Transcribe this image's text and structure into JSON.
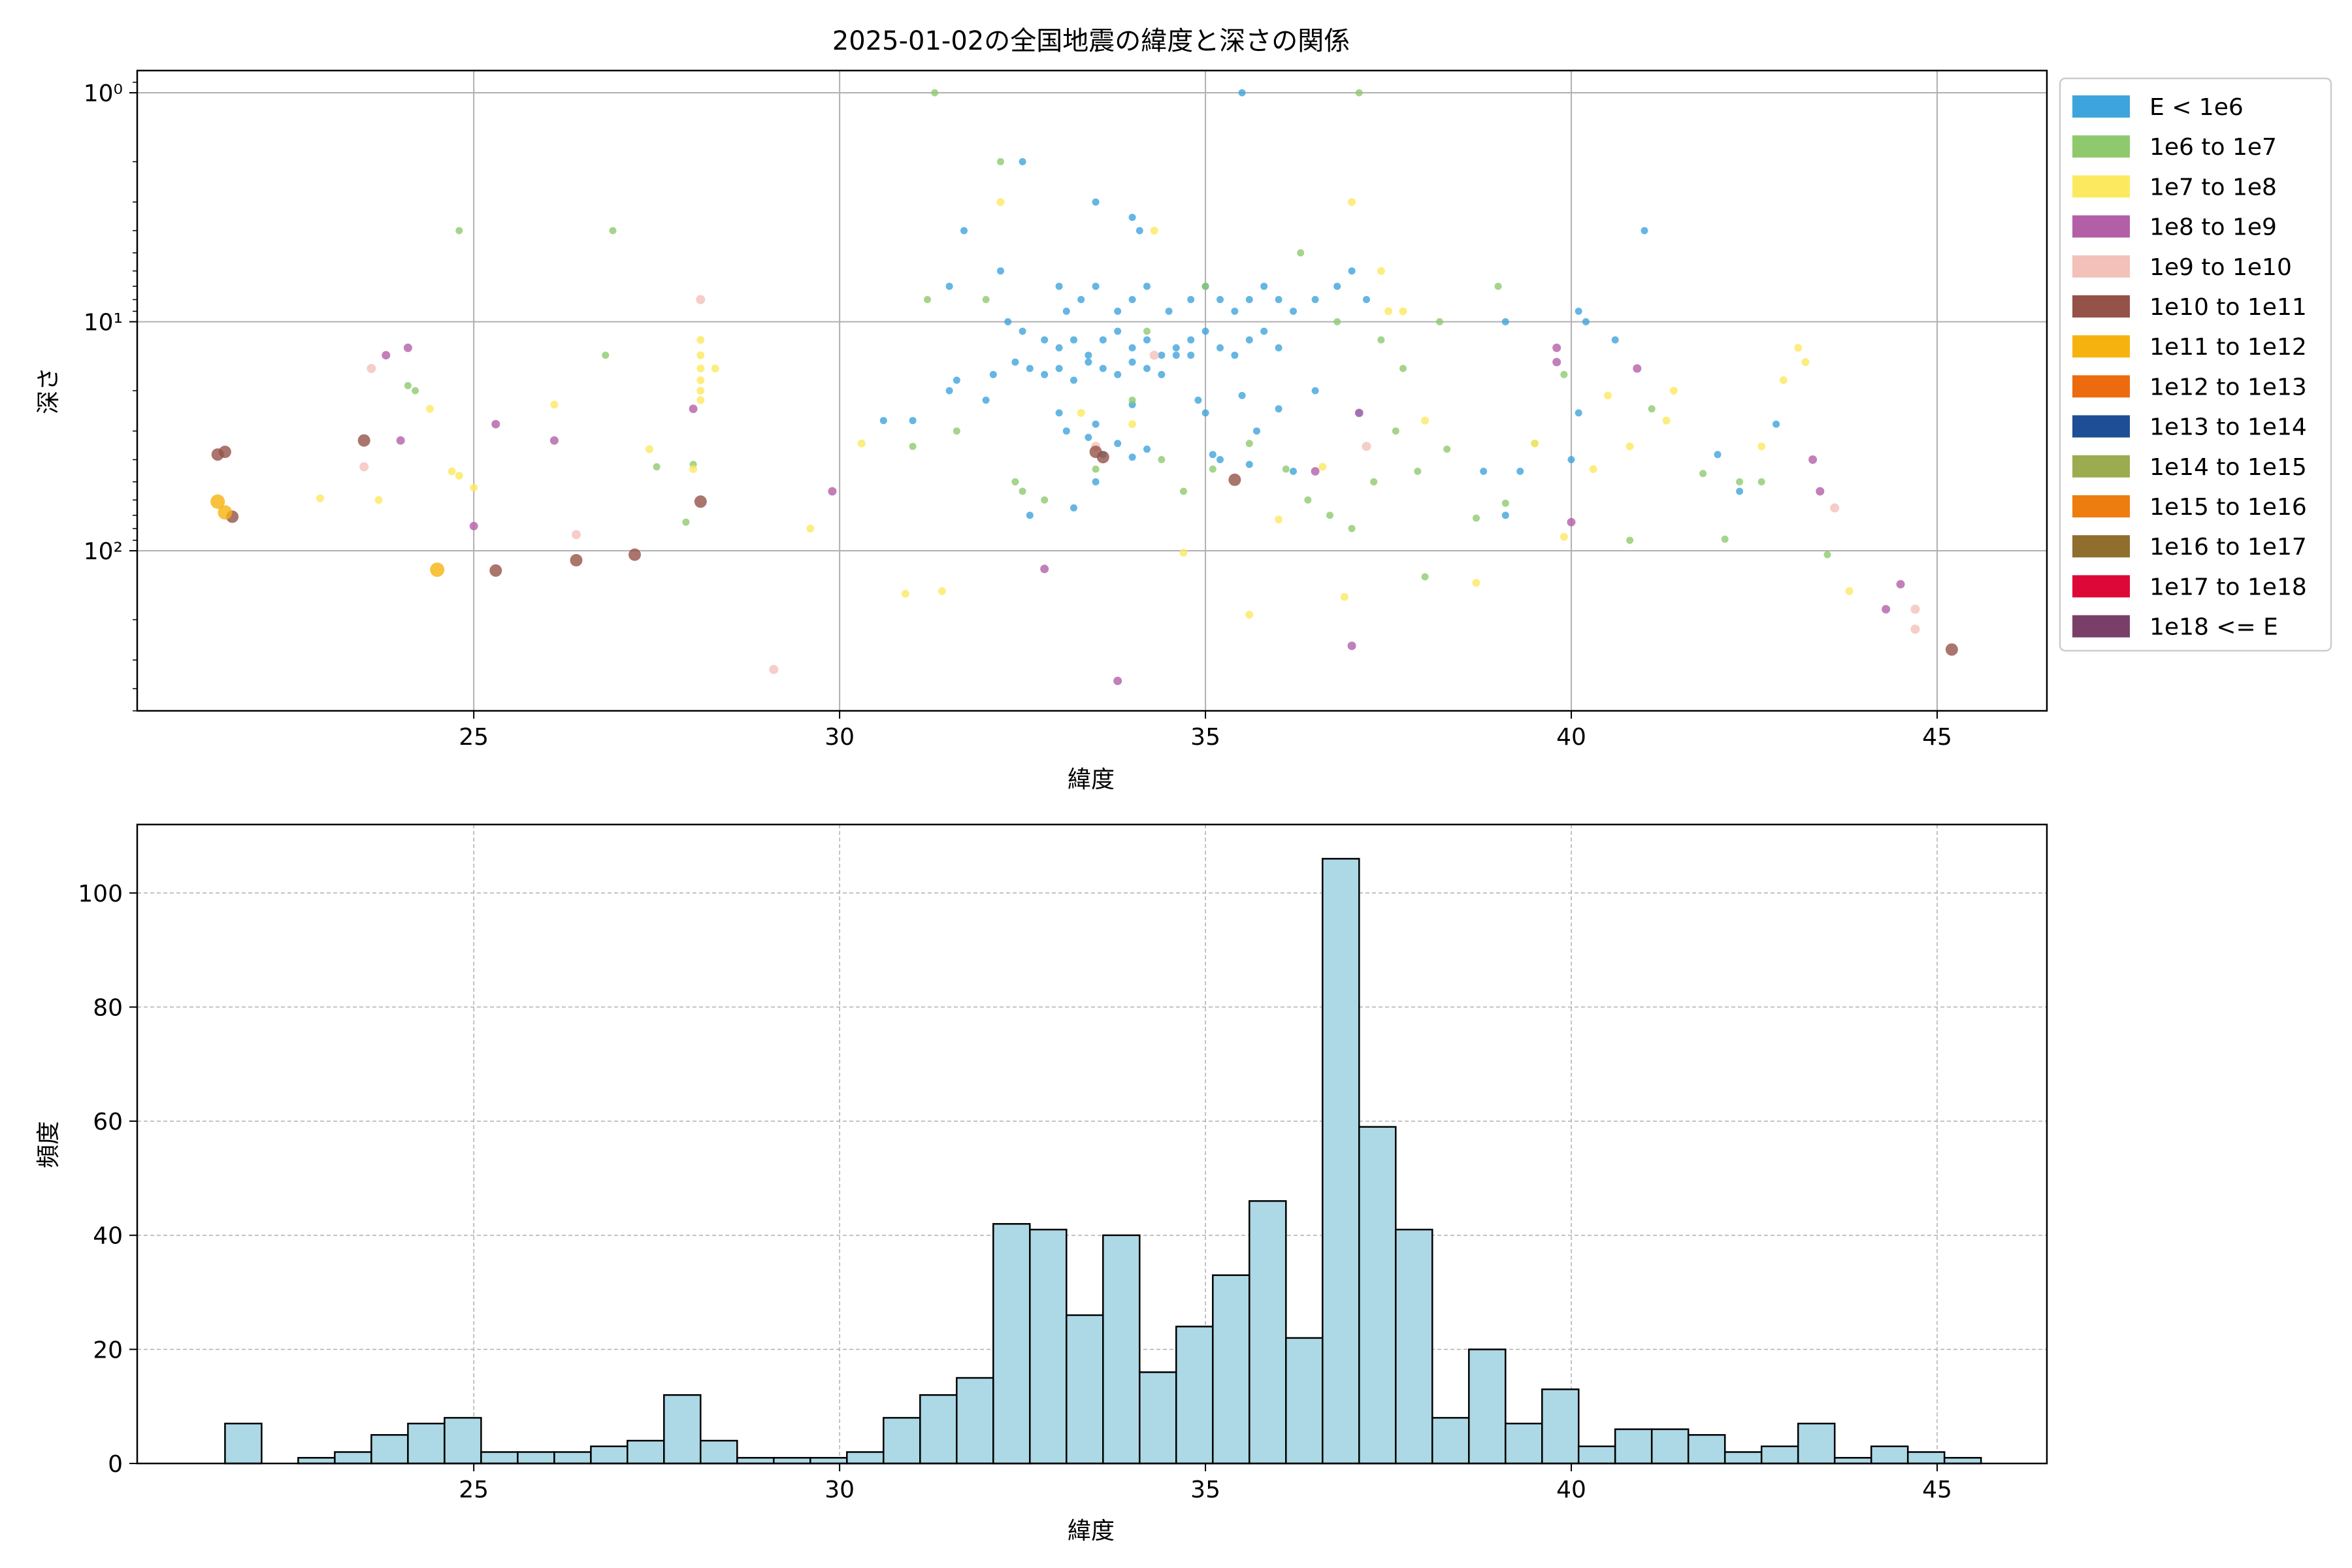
{
  "chart_data": [
    {
      "type": "scatter",
      "title": "2025-01-02の全国地震の緯度と深さの関係",
      "xlabel": "緯度",
      "ylabel": "深さ",
      "xlim": [
        20.4,
        46.5
      ],
      "ylim": [
        500,
        0.8
      ],
      "yscale": "log-inverted",
      "xticks": [
        25,
        30,
        35,
        40,
        45
      ],
      "yticks": [
        {
          "value": 1,
          "label": "10⁰"
        },
        {
          "value": 10,
          "label": "10¹"
        },
        {
          "value": 100,
          "label": "10²"
        }
      ],
      "grid": true,
      "legend_position": "outside-right",
      "legend": [
        {
          "label": "E < 1e6",
          "color": "#3ea4dc"
        },
        {
          "label": "1e6 to 1e7",
          "color": "#8fc96e"
        },
        {
          "label": "1e7 to 1e8",
          "color": "#fde960"
        },
        {
          "label": "1e8 to 1e9",
          "color": "#b35fa8"
        },
        {
          "label": "1e9 to 1e10",
          "color": "#f4c0ba"
        },
        {
          "label": "1e10 to 1e11",
          "color": "#955249"
        },
        {
          "label": "1e11 to 1e12",
          "color": "#f6b30f"
        },
        {
          "label": "1e12 to 1e13",
          "color": "#ec6b0e"
        },
        {
          "label": "1e13 to 1e14",
          "color": "#1e4e96"
        },
        {
          "label": "1e14 to 1e15",
          "color": "#9bac50"
        },
        {
          "label": "1e15 to 1e16",
          "color": "#ee7d0f"
        },
        {
          "label": "1e16 to 1e17",
          "color": "#906e2e"
        },
        {
          "label": "1e17 to 1e18",
          "color": "#de0838"
        },
        {
          "label": "1e18 <= E",
          "color": "#7a3f69"
        }
      ],
      "series": [
        {
          "class": 0,
          "points": [
            [
              32.5,
              2
            ],
            [
              35.5,
              1
            ],
            [
              33.5,
              3
            ],
            [
              34,
              3.5
            ],
            [
              34.1,
              4
            ],
            [
              32.2,
              6
            ],
            [
              33,
              7
            ],
            [
              33.1,
              9
            ],
            [
              33.3,
              8
            ],
            [
              33.5,
              7
            ],
            [
              33.8,
              9
            ],
            [
              34,
              8
            ],
            [
              34.2,
              7
            ],
            [
              34.5,
              9
            ],
            [
              34.8,
              8
            ],
            [
              35,
              7
            ],
            [
              35.2,
              8
            ],
            [
              35.4,
              9
            ],
            [
              35.6,
              8
            ],
            [
              35.8,
              7
            ],
            [
              36,
              8
            ],
            [
              36.2,
              9
            ],
            [
              36.5,
              8
            ],
            [
              36.8,
              7
            ],
            [
              37,
              6
            ],
            [
              37.2,
              8
            ],
            [
              32.3,
              10
            ],
            [
              32.5,
              11
            ],
            [
              32.8,
              12
            ],
            [
              33,
              13
            ],
            [
              33.2,
              12
            ],
            [
              33.4,
              14
            ],
            [
              33.6,
              12
            ],
            [
              33.8,
              11
            ],
            [
              34,
              13
            ],
            [
              34.2,
              12
            ],
            [
              34.4,
              14
            ],
            [
              34.6,
              13
            ],
            [
              34.8,
              12
            ],
            [
              35,
              11
            ],
            [
              35.2,
              13
            ],
            [
              35.4,
              14
            ],
            [
              35.6,
              12
            ],
            [
              35.8,
              11
            ],
            [
              36,
              13
            ],
            [
              32.4,
              15
            ],
            [
              32.6,
              16
            ],
            [
              32.8,
              17
            ],
            [
              33,
              16
            ],
            [
              33.2,
              18
            ],
            [
              33.4,
              15
            ],
            [
              33.6,
              16
            ],
            [
              33.8,
              17
            ],
            [
              34,
              15
            ],
            [
              34.2,
              16
            ],
            [
              34.4,
              17
            ],
            [
              34.6,
              14
            ],
            [
              31.5,
              20
            ],
            [
              32,
              22
            ],
            [
              33,
              25
            ],
            [
              33.5,
              28
            ],
            [
              34,
              23
            ],
            [
              35,
              25
            ],
            [
              35.5,
              21
            ],
            [
              36,
              24
            ],
            [
              31,
              27
            ],
            [
              31.6,
              18
            ],
            [
              30.6,
              27
            ],
            [
              32.1,
              17
            ],
            [
              34.8,
              14
            ],
            [
              34.9,
              22
            ],
            [
              33.1,
              30
            ],
            [
              33.4,
              32
            ],
            [
              33.6,
              38
            ],
            [
              33.8,
              34
            ],
            [
              34,
              39
            ],
            [
              34.2,
              36
            ],
            [
              35.1,
              38
            ],
            [
              35.6,
              42
            ],
            [
              36.2,
              45
            ],
            [
              32.6,
              70
            ],
            [
              33.2,
              65
            ],
            [
              33.5,
              50
            ],
            [
              35.2,
              40
            ],
            [
              35.7,
              30
            ],
            [
              36.5,
              20
            ],
            [
              37.1,
              25
            ],
            [
              38.8,
              45
            ],
            [
              39.3,
              45
            ],
            [
              39.1,
              70
            ],
            [
              40,
              40
            ],
            [
              40.1,
              25
            ],
            [
              40.2,
              10
            ],
            [
              40.1,
              9
            ],
            [
              42,
              38
            ],
            [
              42.3,
              55
            ],
            [
              42.8,
              28
            ],
            [
              41,
              4
            ],
            [
              31.7,
              4
            ],
            [
              31.5,
              7
            ],
            [
              39.1,
              10
            ],
            [
              40.6,
              12
            ]
          ]
        },
        {
          "class": 1,
          "points": [
            [
              24.8,
              4
            ],
            [
              26.9,
              4
            ],
            [
              31.3,
              1
            ],
            [
              31.2,
              8
            ],
            [
              32.2,
              2
            ],
            [
              36.3,
              5
            ],
            [
              37.1,
              1
            ],
            [
              24.1,
              19
            ],
            [
              24.2,
              20
            ],
            [
              26.8,
              14
            ],
            [
              27.5,
              43
            ],
            [
              27.9,
              75
            ],
            [
              28,
              42
            ],
            [
              31,
              35
            ],
            [
              31.6,
              30
            ],
            [
              32.4,
              50
            ],
            [
              32.5,
              55
            ],
            [
              32.8,
              60
            ],
            [
              33.5,
              44
            ],
            [
              34,
              22
            ],
            [
              34.4,
              40
            ],
            [
              34.7,
              55
            ],
            [
              35.1,
              44
            ],
            [
              35.6,
              34
            ],
            [
              36.1,
              44
            ],
            [
              36.4,
              60
            ],
            [
              36.7,
              70
            ],
            [
              37,
              80
            ],
            [
              37.3,
              50
            ],
            [
              37.6,
              30
            ],
            [
              37.9,
              45
            ],
            [
              38.3,
              36
            ],
            [
              38.7,
              72
            ],
            [
              39.1,
              62
            ],
            [
              39.5,
              34
            ],
            [
              39.9,
              17
            ],
            [
              40.8,
              90
            ],
            [
              41.1,
              24
            ],
            [
              41.8,
              46
            ],
            [
              42.1,
              89
            ],
            [
              42.3,
              50
            ],
            [
              42.6,
              50
            ],
            [
              43.5,
              104
            ],
            [
              38,
              130
            ],
            [
              37.4,
              12
            ],
            [
              38.2,
              10
            ],
            [
              39,
              7
            ],
            [
              37.7,
              16
            ],
            [
              36.8,
              10
            ],
            [
              34.2,
              11
            ],
            [
              35,
              7
            ],
            [
              32,
              8
            ]
          ]
        },
        {
          "class": 2,
          "points": [
            [
              22.9,
              59
            ],
            [
              23.7,
              60
            ],
            [
              24.4,
              24
            ],
            [
              24.8,
              47
            ],
            [
              25,
              53
            ],
            [
              24.7,
              45
            ],
            [
              26.1,
              23
            ],
            [
              27.4,
              36
            ],
            [
              28.1,
              12
            ],
            [
              28.1,
              14
            ],
            [
              28.1,
              16
            ],
            [
              28.1,
              18
            ],
            [
              28.1,
              20
            ],
            [
              28.1,
              22
            ],
            [
              28,
              44
            ],
            [
              28.3,
              16
            ],
            [
              29.6,
              80
            ],
            [
              30.3,
              34
            ],
            [
              30.9,
              154
            ],
            [
              31.4,
              150
            ],
            [
              32.2,
              3
            ],
            [
              33.3,
              25
            ],
            [
              34,
              28
            ],
            [
              34.7,
              102
            ],
            [
              35.6,
              190
            ],
            [
              36,
              73
            ],
            [
              36.6,
              43
            ],
            [
              36.9,
              159
            ],
            [
              37.4,
              6
            ],
            [
              37.5,
              9
            ],
            [
              38,
              27
            ],
            [
              38.7,
              138
            ],
            [
              39.5,
              34
            ],
            [
              39.9,
              87
            ],
            [
              40.3,
              44
            ],
            [
              40.5,
              21
            ],
            [
              40.8,
              35
            ],
            [
              41.3,
              27
            ],
            [
              41.4,
              20
            ],
            [
              42.6,
              35
            ],
            [
              42.9,
              18
            ],
            [
              43.1,
              13
            ],
            [
              43.2,
              15
            ],
            [
              43.8,
              150
            ],
            [
              37,
              3
            ],
            [
              37.7,
              9
            ],
            [
              34.3,
              4
            ]
          ]
        },
        {
          "class": 3,
          "points": [
            [
              23.8,
              14
            ],
            [
              24.1,
              13
            ],
            [
              24,
              33
            ],
            [
              25.3,
              28
            ],
            [
              25,
              78
            ],
            [
              26.1,
              33
            ],
            [
              28,
              24
            ],
            [
              29.9,
              55
            ],
            [
              32.8,
              120
            ],
            [
              33.8,
              370
            ],
            [
              36.5,
              45
            ],
            [
              37,
              260
            ],
            [
              37.1,
              25
            ],
            [
              39.8,
              13
            ],
            [
              39.8,
              15
            ],
            [
              40,
              75
            ],
            [
              40.9,
              16
            ],
            [
              43.3,
              40
            ],
            [
              43.4,
              55
            ],
            [
              44.3,
              180
            ],
            [
              44.5,
              140
            ]
          ]
        },
        {
          "class": 4,
          "points": [
            [
              23.6,
              16
            ],
            [
              23.5,
              43
            ],
            [
              26.4,
              85
            ],
            [
              28.1,
              8
            ],
            [
              29.1,
              330
            ],
            [
              33.5,
              35
            ],
            [
              34.3,
              14
            ],
            [
              37.2,
              35
            ],
            [
              43.6,
              65
            ],
            [
              44.7,
              180
            ],
            [
              44.7,
              220
            ]
          ]
        },
        {
          "class": 5,
          "points": [
            [
              21.5,
              38
            ],
            [
              21.6,
              37
            ],
            [
              21.7,
              71
            ],
            [
              23.5,
              33
            ],
            [
              25.3,
              122
            ],
            [
              26.4,
              110
            ],
            [
              27.2,
              104
            ],
            [
              28.1,
              61
            ],
            [
              33.5,
              37
            ],
            [
              33.6,
              39
            ],
            [
              35.4,
              49
            ],
            [
              45.2,
              270
            ]
          ]
        },
        {
          "class": 6,
          "points": [
            [
              21.5,
              61
            ],
            [
              21.6,
              68
            ],
            [
              24.5,
              121
            ]
          ]
        }
      ]
    },
    {
      "type": "bar",
      "title": "",
      "xlabel": "緯度",
      "ylabel": "頻度",
      "xlim": [
        20.4,
        46.5
      ],
      "ylim": [
        0,
        112
      ],
      "xticks": [
        25,
        30,
        35,
        40,
        45
      ],
      "yticks": [
        0,
        20,
        40,
        60,
        80,
        100
      ],
      "grid": true,
      "bin_start": 21.6,
      "bin_width": 0.5,
      "bar_color": "#add8e6",
      "values": [
        7,
        0,
        1,
        2,
        5,
        7,
        8,
        2,
        2,
        2,
        3,
        4,
        12,
        4,
        1,
        1,
        1,
        2,
        8,
        12,
        15,
        42,
        41,
        26,
        40,
        16,
        24,
        33,
        46,
        22,
        106,
        59,
        41,
        8,
        20,
        7,
        13,
        3,
        6,
        6,
        5,
        2,
        3,
        7,
        1,
        3,
        2,
        1
      ]
    }
  ]
}
